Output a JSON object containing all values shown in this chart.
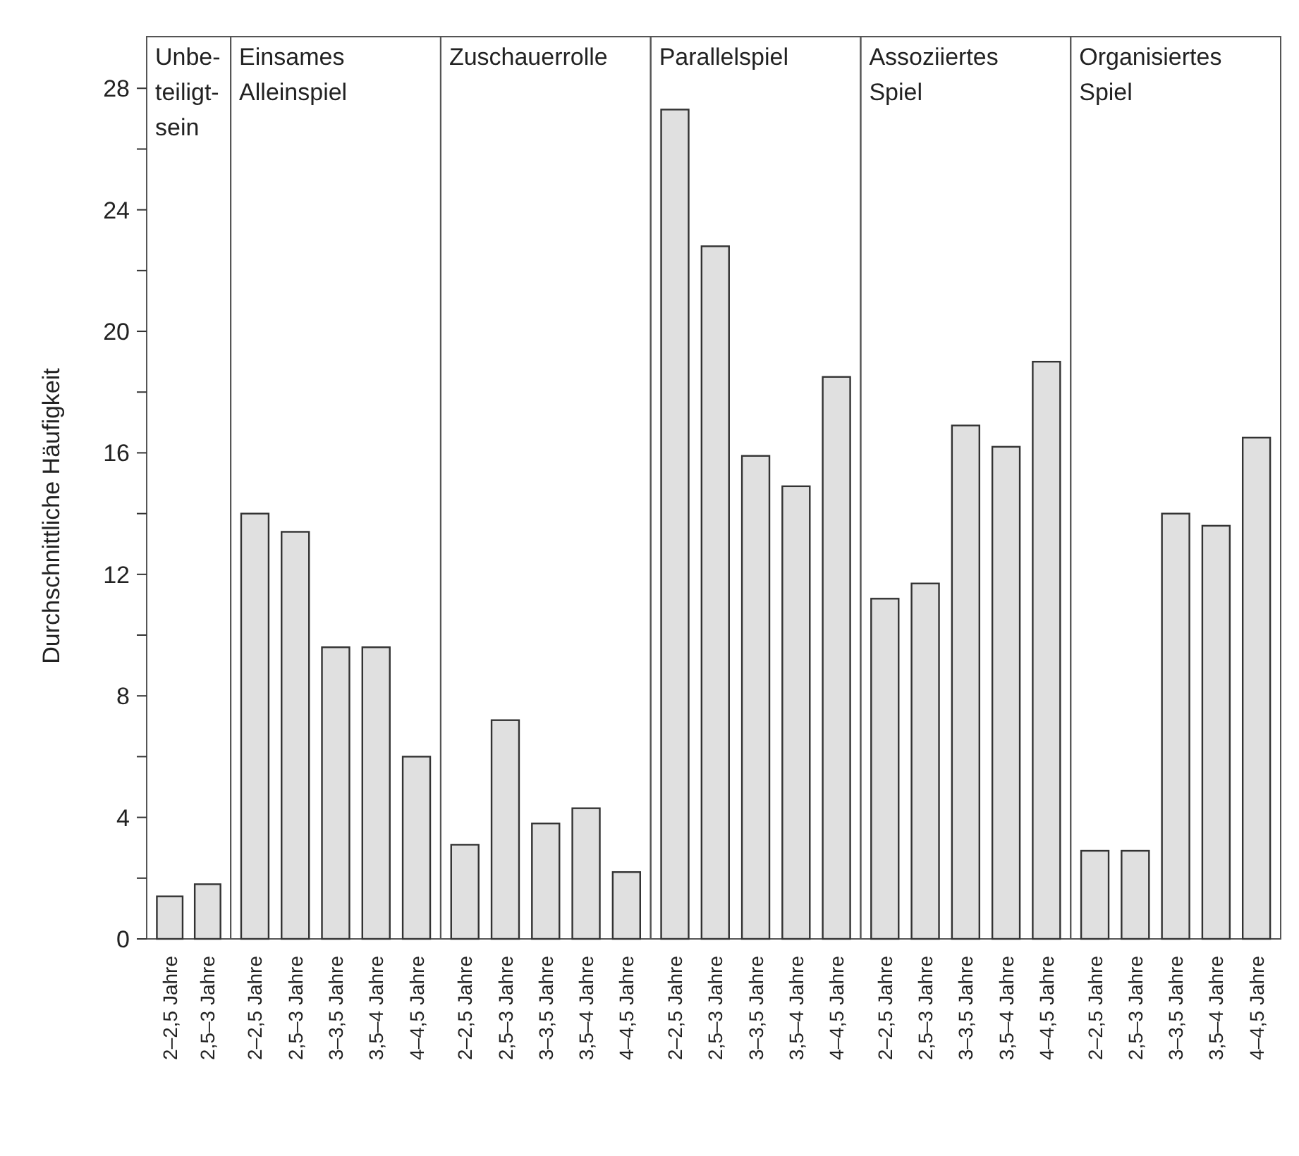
{
  "chart_data": [
    {
      "type": "bar",
      "title": "Unbe-\nteiligt-\nsein",
      "ylabel": "Durchschnittliche Häufigkeit",
      "categories": [
        "2–2,5 Jahre",
        "2,5–3 Jahre"
      ],
      "values": [
        1.4,
        1.8
      ],
      "color": "#e0e0e0",
      "ylim": [
        0,
        29.7
      ],
      "yticks": [
        0,
        {
          "value": 2,
          "label": null
        },
        4,
        {
          "value": 6,
          "label": null
        },
        8,
        {
          "value": 10,
          "label": null
        },
        12,
        {
          "value": 14,
          "label": null
        },
        16,
        {
          "value": 18,
          "label": null
        },
        20,
        {
          "value": 22,
          "label": null
        },
        24,
        {
          "value": 26,
          "label": null
        },
        28
      ]
    },
    {
      "type": "bar",
      "title": "Einsames\nAlleinspiel",
      "categories": [
        "2–2,5 Jahre",
        "2,5–3 Jahre",
        "3–3,5 Jahre",
        "3,5–4 Jahre",
        "4–4,5 Jahre"
      ],
      "values": [
        14.0,
        13.4,
        9.6,
        9.6,
        6.0
      ],
      "color": "#e0e0e0",
      "ylim": [
        0,
        29.7
      ],
      "tick_labels": "x"
    },
    {
      "type": "bar",
      "title": "Zuschauerrolle",
      "categories": [
        "2–2,5 Jahre",
        "2,5–3 Jahre",
        "3–3,5 Jahre",
        "3,5–4 Jahre",
        "4–4,5 Jahre"
      ],
      "values": [
        3.1,
        7.2,
        3.8,
        4.3,
        2.2
      ],
      "color": "#e0e0e0",
      "ylim": [
        0,
        29.7
      ],
      "tick_labels": "x"
    },
    {
      "type": "bar",
      "title": "Parallelspiel",
      "categories": [
        "2–2,5 Jahre",
        "2,5–3 Jahre",
        "3–3,5 Jahre",
        "3,5–4 Jahre",
        "4–4,5 Jahre"
      ],
      "values": [
        27.3,
        22.8,
        15.9,
        14.9,
        18.5
      ],
      "color": "#e0e0e0",
      "ylim": [
        0,
        29.7
      ],
      "tick_labels": "x"
    },
    {
      "type": "bar",
      "title": "Assoziiertes\nSpiel",
      "categories": [
        "2–2,5 Jahre",
        "2,5–3 Jahre",
        "3–3,5 Jahre",
        "3,5–4 Jahre",
        "4–4,5 Jahre"
      ],
      "values": [
        11.2,
        11.7,
        16.9,
        16.2,
        19.0
      ],
      "color": "#e0e0e0",
      "ylim": [
        0,
        29.7
      ],
      "tick_labels": "x"
    },
    {
      "type": "bar",
      "title": "Organisiertes\nSpiel",
      "categories": [
        "2–2,5 Jahre",
        "2,5–3 Jahre",
        "3–3,5 Jahre",
        "3,5–4 Jahre",
        "4–4,5 Jahre"
      ],
      "values": [
        2.9,
        2.9,
        14.0,
        13.6,
        16.5
      ],
      "color": "#e0e0e0",
      "ylim": [
        0,
        29.7
      ],
      "tick_labels": "x"
    }
  ]
}
